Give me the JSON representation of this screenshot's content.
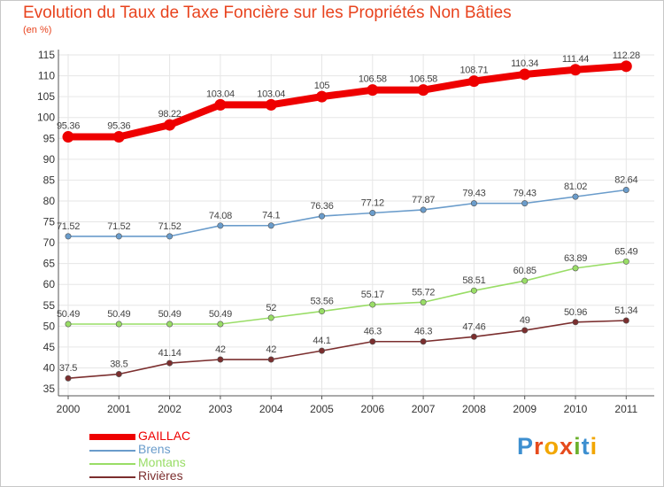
{
  "header": {
    "title": "Evolution du Taux de Taxe Foncière sur les Propriétés Non Bâties",
    "subtitle": "(en %)"
  },
  "logo": {
    "text": "Proxiti"
  },
  "colors": {
    "title": "#e8431e",
    "axis": "#555555",
    "grid": "#e6e6e6"
  },
  "chart_data": {
    "type": "line",
    "title": "Evolution du Taux de Taxe Foncière sur les Propriétés Non Bâties",
    "ylabel": "(en %)",
    "xlabel": "",
    "x": [
      "2000",
      "2001",
      "2002",
      "2003",
      "2004",
      "2005",
      "2006",
      "2007",
      "2008",
      "2009",
      "2010",
      "2011"
    ],
    "ylim": [
      35,
      115
    ],
    "y_ticks": [
      35,
      40,
      45,
      50,
      55,
      60,
      65,
      70,
      75,
      80,
      85,
      90,
      95,
      100,
      105,
      110,
      115
    ],
    "grid": true,
    "legend_position": "bottom-left",
    "series": [
      {
        "name": "GAILLAC",
        "color": "#ee0000",
        "values": [
          95.36,
          95.36,
          98.22,
          103.04,
          103.04,
          105,
          106.58,
          106.58,
          108.71,
          110.34,
          111.44,
          112.28
        ],
        "labels": [
          "95.36",
          "95.36",
          "98.22",
          "103.04",
          "103.04",
          "105",
          "106.58",
          "106.58",
          "108.71",
          "110.34",
          "111.44",
          "112.28"
        ]
      },
      {
        "name": "Brens",
        "color": "#6a9ccb",
        "values": [
          71.52,
          71.52,
          71.52,
          74.08,
          74.1,
          76.36,
          77.12,
          77.87,
          79.43,
          79.43,
          81.02,
          82.64
        ],
        "labels": [
          "71.52",
          "71.52",
          "71.52",
          "74.08",
          "74.1",
          "76.36",
          "77.12",
          "77.87",
          "79.43",
          "79.43",
          "81.02",
          "82.64"
        ]
      },
      {
        "name": "Montans",
        "color": "#99dd66",
        "values": [
          50.49,
          50.49,
          50.49,
          50.49,
          52,
          53.56,
          55.17,
          55.72,
          58.51,
          60.85,
          63.89,
          65.49
        ],
        "labels": [
          "50.49",
          "50.49",
          "50.49",
          "50.49",
          "52",
          "53.56",
          "55.17",
          "55.72",
          "58.51",
          "60.85",
          "63.89",
          "65.49"
        ]
      },
      {
        "name": "Rivières",
        "color": "#7b2e2e",
        "values": [
          37.5,
          38.5,
          41.14,
          42,
          42,
          44.1,
          46.3,
          46.3,
          47.46,
          49,
          50.96,
          51.34
        ],
        "labels": [
          "37.5",
          "38.5",
          "41.14",
          "42",
          "42",
          "44.1",
          "46.3",
          "46.3",
          "47.46",
          "49",
          "50.96",
          "51.34"
        ]
      }
    ]
  }
}
